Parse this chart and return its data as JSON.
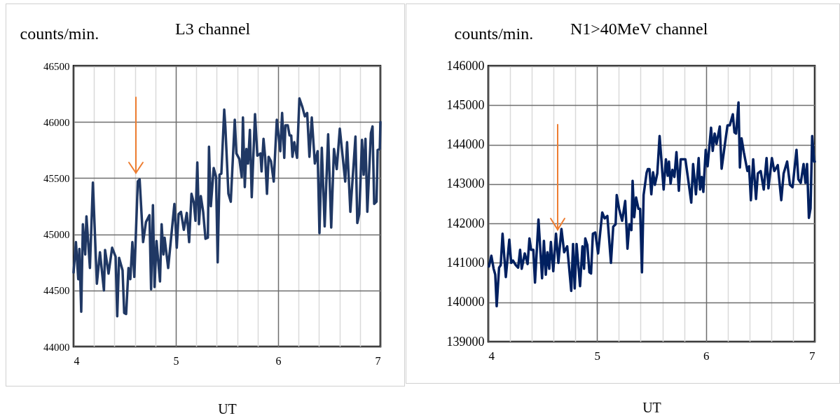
{
  "chart_data": [
    {
      "type": "line",
      "title": "L3 channel",
      "ylabel": "counts/min.",
      "xlabel": "UT",
      "xlim": [
        4,
        7
      ],
      "ylim": [
        44000,
        46500
      ],
      "xticks": [
        4,
        {
          "value": 4.2,
          "label": null
        },
        {
          "value": 4.4,
          "label": null
        },
        {
          "value": 4.6,
          "label": null
        },
        {
          "value": 4.8,
          "label": null
        },
        5,
        {
          "value": 5.2,
          "label": null
        },
        {
          "value": 5.4,
          "label": null
        },
        {
          "value": 5.6,
          "label": null
        },
        {
          "value": 5.8,
          "label": null
        },
        6,
        {
          "value": 6.2,
          "label": null
        },
        {
          "value": 6.4,
          "label": null
        },
        {
          "value": 6.6,
          "label": null
        },
        {
          "value": 6.8,
          "label": null
        },
        7
      ],
      "yticks": [
        44000,
        44500,
        45000,
        45500,
        46000,
        46500
      ],
      "grid": true,
      "x": [
        4.0,
        4.023,
        4.046,
        4.057,
        4.075,
        4.091,
        4.114,
        4.126,
        4.16,
        4.189,
        4.228,
        4.258,
        4.297,
        4.308,
        4.342,
        4.377,
        4.411,
        4.427,
        4.445,
        4.479,
        4.495,
        4.514,
        4.537,
        4.555,
        4.575,
        4.594,
        4.628,
        4.646,
        4.68,
        4.708,
        4.742,
        4.758,
        4.776,
        4.792,
        4.811,
        4.845,
        4.861,
        4.879,
        4.89,
        4.925,
        4.986,
        5.009,
        5.027,
        5.05,
        5.078,
        5.107,
        5.13,
        5.153,
        5.176,
        5.192,
        5.21,
        5.226,
        5.244,
        5.267,
        5.29,
        5.313,
        5.324,
        5.342,
        5.37,
        5.393,
        5.409,
        5.427,
        5.445,
        5.473,
        5.484,
        5.514,
        5.537,
        5.576,
        5.592,
        5.621,
        5.644,
        5.656,
        5.674,
        5.69,
        5.706,
        5.724,
        5.742,
        5.774,
        5.797,
        5.827,
        5.838,
        5.857,
        5.873,
        5.891,
        5.907,
        5.93,
        5.957,
        5.987,
        6.021,
        6.039,
        6.06,
        6.071,
        6.094,
        6.112,
        6.128,
        6.14,
        6.158,
        6.185,
        6.208,
        6.238,
        6.261,
        6.284,
        6.306,
        6.329,
        6.359,
        6.386,
        6.404,
        6.427,
        6.455,
        6.489,
        6.519,
        6.546,
        6.573,
        6.603,
        6.656,
        6.674,
        6.706,
        6.74,
        6.756,
        6.774,
        6.793,
        6.82,
        6.836,
        6.854,
        6.872,
        6.907,
        6.923,
        6.939,
        6.962,
        6.973,
        6.994,
        7.0
      ],
      "series": [
        {
          "color": "#203864",
          "values": [
            44660,
            44930,
            44600,
            44870,
            44310,
            45090,
            44820,
            45160,
            44700,
            45460,
            44560,
            44840,
            44500,
            44860,
            44650,
            44880,
            44800,
            44270,
            44790,
            44680,
            44300,
            44290,
            44700,
            44600,
            44930,
            44620,
            45470,
            45490,
            44930,
            45110,
            45170,
            44510,
            45260,
            44530,
            44940,
            44580,
            45090,
            44820,
            44970,
            44700,
            45270,
            44880,
            45180,
            45200,
            45040,
            45190,
            44930,
            45360,
            45280,
            45120,
            45640,
            45090,
            45340,
            45200,
            44960,
            44970,
            45780,
            45250,
            45590,
            45510,
            44750,
            45530,
            45540,
            46110,
            45960,
            45360,
            45290,
            46020,
            45720,
            45670,
            45510,
            46040,
            45420,
            45760,
            45630,
            45930,
            45330,
            46070,
            45700,
            45720,
            45560,
            45850,
            45690,
            45360,
            45690,
            45650,
            45470,
            46020,
            45740,
            46080,
            45680,
            45970,
            45970,
            45880,
            45880,
            45690,
            45820,
            45680,
            46210,
            46130,
            46050,
            46080,
            45690,
            46040,
            45630,
            45740,
            45010,
            45770,
            45070,
            45890,
            45060,
            45760,
            45580,
            45940,
            45470,
            45820,
            45200,
            45650,
            45870,
            45100,
            45180,
            45840,
            45530,
            45850,
            45200,
            45900,
            45960,
            45270,
            45290,
            45750,
            45760,
            46000
          ]
        }
      ]
    },
    {
      "type": "line",
      "title": "N1>40MeV channel",
      "ylabel": "counts/min.",
      "xlabel": "UT",
      "xlim": [
        4,
        7
      ],
      "ylim": [
        139000,
        146000
      ],
      "xticks": [
        4,
        {
          "value": 4.2,
          "label": null
        },
        {
          "value": 4.4,
          "label": null
        },
        {
          "value": 4.6,
          "label": null
        },
        {
          "value": 4.8,
          "label": null
        },
        5,
        {
          "value": 5.2,
          "label": null
        },
        {
          "value": 5.4,
          "label": null
        },
        {
          "value": 5.6,
          "label": null
        },
        {
          "value": 5.8,
          "label": null
        },
        6,
        {
          "value": 6.2,
          "label": null
        },
        {
          "value": 6.4,
          "label": null
        },
        {
          "value": 6.6,
          "label": null
        },
        {
          "value": 6.8,
          "label": null
        },
        7
      ],
      "yticks": [
        139000,
        140000,
        141000,
        142000,
        143000,
        144000,
        145000,
        146000
      ],
      "grid": true,
      "x": [
        4.006,
        4.028,
        4.049,
        4.064,
        4.077,
        4.099,
        4.114,
        4.131,
        4.161,
        4.193,
        4.21,
        4.227,
        4.253,
        4.274,
        4.292,
        4.307,
        4.335,
        4.361,
        4.378,
        4.393,
        4.414,
        4.429,
        4.461,
        4.494,
        4.511,
        4.528,
        4.543,
        4.56,
        4.575,
        4.597,
        4.622,
        4.644,
        4.672,
        4.697,
        4.725,
        4.762,
        4.779,
        4.794,
        4.811,
        4.843,
        4.865,
        4.88,
        4.891,
        4.91,
        4.929,
        4.944,
        4.961,
        4.983,
        5.009,
        5.047,
        5.069,
        5.094,
        5.127,
        5.148,
        5.17,
        5.18,
        5.202,
        5.23,
        5.258,
        5.279,
        5.296,
        5.315,
        5.326,
        5.341,
        5.358,
        5.38,
        5.395,
        5.412,
        5.427,
        5.455,
        5.466,
        5.481,
        5.498,
        5.514,
        5.531,
        5.553,
        5.574,
        5.611,
        5.632,
        5.649,
        5.66,
        5.675,
        5.692,
        5.71,
        5.729,
        5.751,
        5.768,
        5.811,
        5.832,
        5.865,
        5.882,
        5.908,
        5.933,
        5.946,
        5.961,
        5.976,
        5.998,
        6.015,
        6.047,
        6.062,
        6.08,
        6.097,
        6.127,
        6.144,
        6.176,
        6.198,
        6.219,
        6.247,
        6.262,
        6.277,
        6.299,
        6.312,
        6.327,
        6.348,
        6.381,
        6.396,
        6.413,
        6.434,
        6.46,
        6.477,
        6.503,
        6.531,
        6.557,
        6.574,
        6.606,
        6.628,
        6.66,
        6.692,
        6.714,
        6.746,
        6.772,
        6.796,
        6.832,
        6.849,
        6.871,
        6.897,
        6.914,
        6.929,
        6.946,
        6.961,
        6.976,
        6.994,
        7.0
      ],
      "series": [
        {
          "color": "#002060",
          "values": [
            140910,
            141180,
            140850,
            140700,
            139900,
            140880,
            140940,
            141740,
            140640,
            141590,
            141000,
            141060,
            140940,
            140880,
            141330,
            140850,
            141240,
            140970,
            141620,
            141330,
            141330,
            140500,
            142100,
            140610,
            141560,
            140700,
            141270,
            140850,
            141530,
            140790,
            141740,
            141000,
            141860,
            141270,
            141420,
            140290,
            141480,
            140350,
            141480,
            140410,
            141420,
            140850,
            141620,
            141450,
            140760,
            140730,
            141740,
            141770,
            141240,
            142280,
            142130,
            142190,
            141000,
            141920,
            141980,
            142720,
            142370,
            142070,
            142570,
            141360,
            141980,
            141830,
            143080,
            142160,
            142660,
            142370,
            142370,
            140760,
            142720,
            143290,
            143380,
            143380,
            142740,
            143300,
            142980,
            143270,
            144220,
            142860,
            143630,
            143210,
            143570,
            143010,
            143360,
            143180,
            143810,
            142830,
            143630,
            143630,
            143210,
            142530,
            143510,
            142740,
            143660,
            142860,
            143180,
            142800,
            143870,
            143450,
            144430,
            143840,
            144280,
            144020,
            144460,
            143390,
            144050,
            144490,
            144490,
            144770,
            144310,
            144280,
            145070,
            143420,
            144160,
            143810,
            143330,
            143450,
            142590,
            143630,
            142620,
            143270,
            143330,
            142860,
            143660,
            142890,
            143660,
            143330,
            143480,
            142590,
            143270,
            143570,
            142980,
            142920,
            143870,
            143120,
            143030,
            143510,
            143030,
            143510,
            142140,
            142380,
            144220,
            143570,
            143570
          ]
        }
      ]
    }
  ]
}
